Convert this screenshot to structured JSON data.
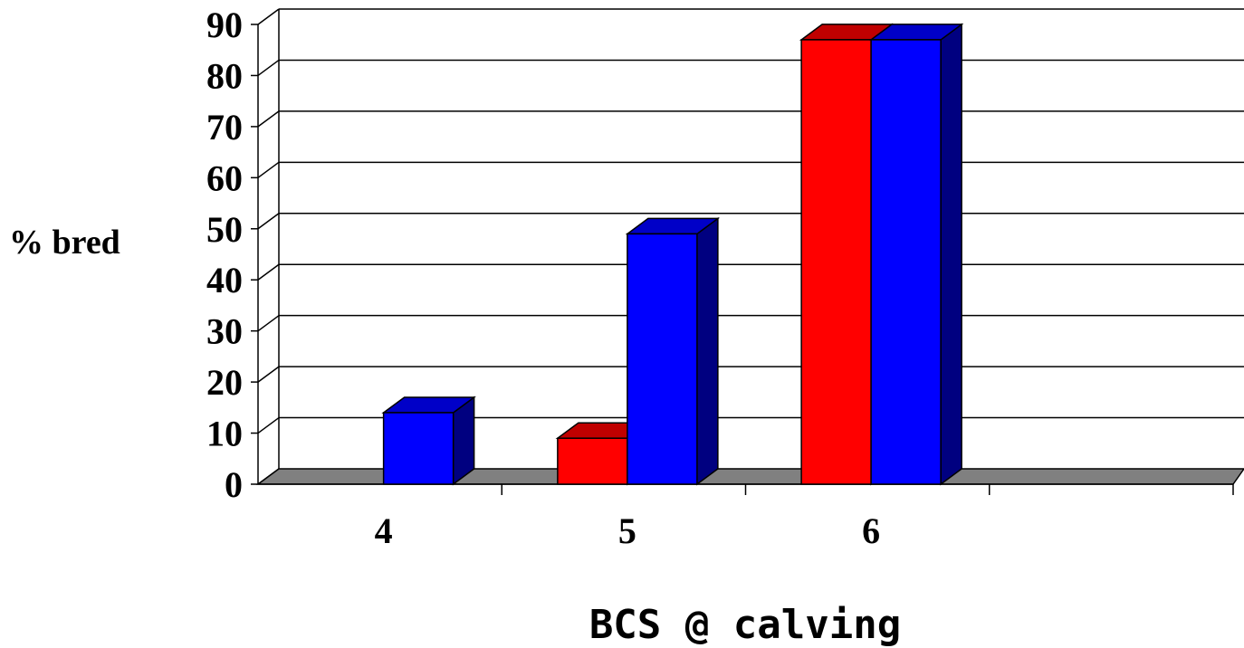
{
  "chart_data": {
    "type": "bar",
    "style": "3d-clustered-column",
    "categories": [
      "4",
      "5",
      "6"
    ],
    "series": [
      {
        "values": [
          0,
          9,
          87
        ],
        "color": "#ff0000",
        "top_color": "#c00000",
        "side_color": "#c00000"
      },
      {
        "values": [
          14,
          49,
          87
        ],
        "color": "#0000ff",
        "top_color": "#0000c8",
        "side_color": "#000080"
      }
    ],
    "ylabel": "% bred",
    "xlabel": "BCS @ calving",
    "ylim": [
      0,
      90
    ],
    "yticks": [
      "0",
      "10",
      "20",
      "30",
      "40",
      "50",
      "60",
      "70",
      "80",
      "90"
    ],
    "grid": true,
    "legend": "none",
    "floor_color": "#808080"
  }
}
